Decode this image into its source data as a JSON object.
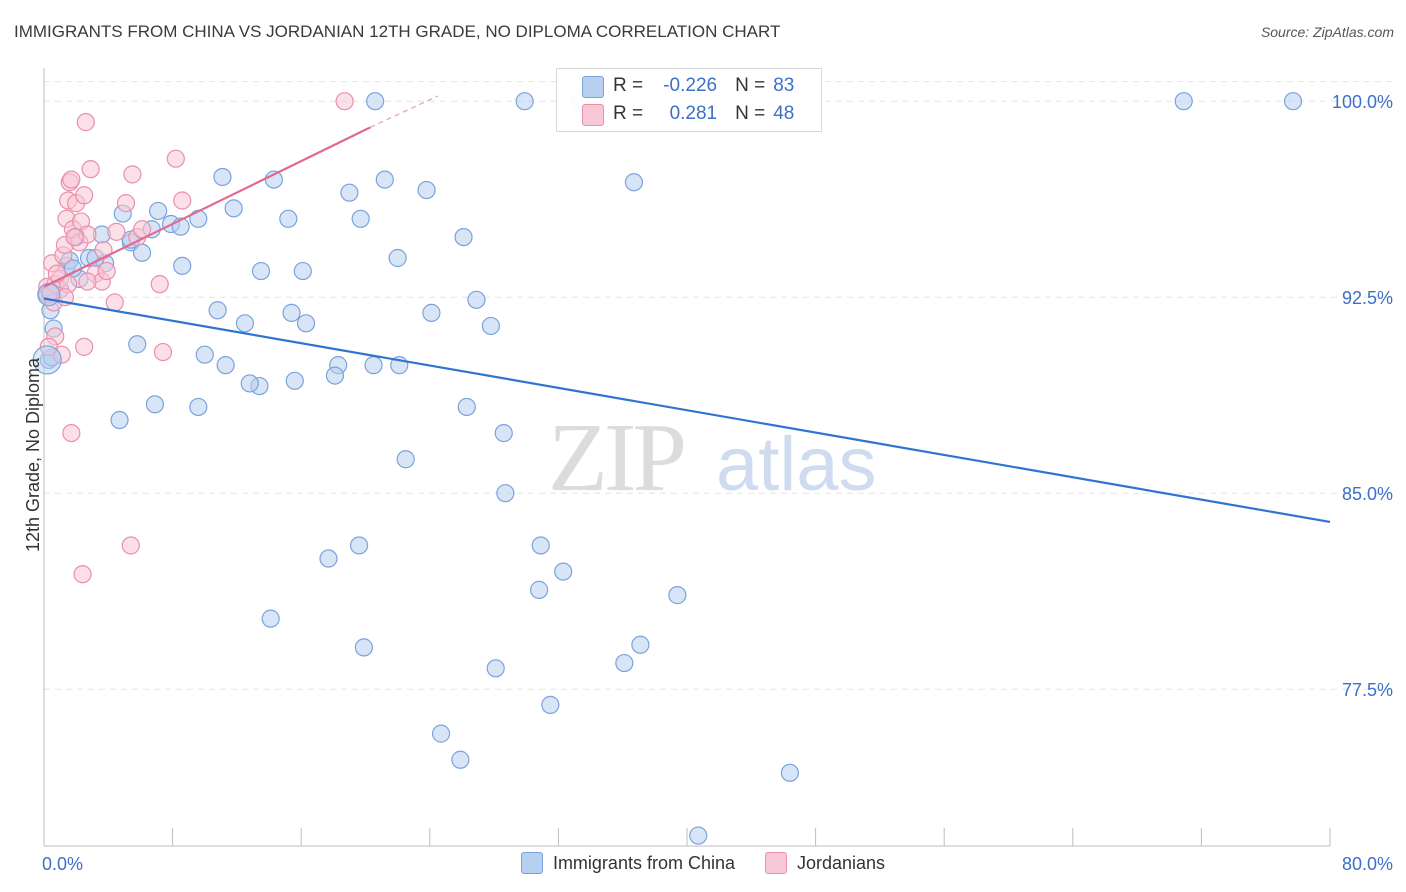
{
  "chart_data": {
    "type": "scatter",
    "title": "IMMIGRANTS FROM CHINA VS JORDANIAN 12TH GRADE, NO DIPLOMA CORRELATION CHART",
    "source": "Source: ZipAtlas.com",
    "xlabel": "",
    "ylabel": "12th Grade, No Diploma",
    "xlim": [
      0,
      80
    ],
    "ylim": [
      71.5,
      101.5
    ],
    "x_tick_labels": [
      "0.0%",
      "80.0%"
    ],
    "y_ticks": [
      77.5,
      85.0,
      92.5,
      100.0
    ],
    "y_tick_labels": [
      "77.5%",
      "85.0%",
      "92.5%",
      "100.0%"
    ],
    "grid": true,
    "watermark": "ZIPatlas",
    "legend_position": "bottom-center",
    "colors": {
      "china_fill": "#b8d0f0",
      "china_edge": "#7aa3dc",
      "china_line": "#2f74d0",
      "jordan_fill": "#f8c7d6",
      "jordan_edge": "#ea8fac",
      "jordan_line": "#e06a93",
      "axis_text": "#3d6fc9",
      "grid": "#e3e3e3"
    },
    "stats": [
      {
        "label_r": "R =",
        "r": "-0.226",
        "label_n": "N =",
        "n": "83"
      },
      {
        "label_r": "R =",
        "r": "0.281",
        "label_n": "N =",
        "n": "48"
      }
    ],
    "series": [
      {
        "name": "Immigrants from China",
        "trend": {
          "x": [
            0,
            80
          ],
          "y": [
            92.45,
            83.9
          ]
        },
        "points": [
          [
            0.2,
            92.6
          ],
          [
            0.4,
            92.0
          ],
          [
            0.3,
            90.1
          ],
          [
            0.6,
            91.3
          ],
          [
            1.4,
            93.7
          ],
          [
            1.6,
            93.9
          ],
          [
            2.0,
            94.8
          ],
          [
            2.2,
            93.2
          ],
          [
            2.8,
            94.0
          ],
          [
            3.6,
            94.9
          ],
          [
            3.8,
            93.8
          ],
          [
            4.9,
            95.7
          ],
          [
            5.4,
            94.6
          ],
          [
            6.1,
            94.2
          ],
          [
            6.7,
            95.1
          ],
          [
            7.1,
            95.8
          ],
          [
            7.9,
            95.3
          ],
          [
            8.6,
            93.7
          ],
          [
            9.6,
            95.5
          ],
          [
            11.1,
            97.1
          ],
          [
            11.8,
            95.9
          ],
          [
            13.5,
            93.5
          ],
          [
            15.2,
            95.5
          ],
          [
            16.1,
            93.5
          ],
          [
            14.3,
            97.0
          ],
          [
            19.0,
            96.5
          ],
          [
            19.7,
            95.5
          ],
          [
            21.2,
            97.0
          ],
          [
            22.0,
            94.0
          ],
          [
            23.8,
            96.6
          ],
          [
            26.1,
            94.8
          ],
          [
            26.9,
            92.4
          ],
          [
            27.8,
            91.4
          ],
          [
            24.1,
            91.9
          ],
          [
            20.5,
            89.9
          ],
          [
            22.1,
            89.9
          ],
          [
            18.3,
            89.9
          ],
          [
            18.1,
            89.5
          ],
          [
            15.6,
            89.3
          ],
          [
            16.3,
            91.5
          ],
          [
            15.4,
            91.9
          ],
          [
            13.4,
            89.1
          ],
          [
            12.8,
            89.2
          ],
          [
            12.5,
            91.5
          ],
          [
            10.8,
            92.0
          ],
          [
            11.3,
            89.9
          ],
          [
            10.0,
            90.3
          ],
          [
            9.6,
            88.3
          ],
          [
            6.9,
            88.4
          ],
          [
            5.8,
            90.7
          ],
          [
            4.7,
            87.8
          ],
          [
            26.3,
            88.3
          ],
          [
            28.6,
            87.3
          ],
          [
            22.5,
            86.3
          ],
          [
            28.7,
            85.0
          ],
          [
            19.6,
            83.0
          ],
          [
            17.7,
            82.5
          ],
          [
            30.9,
            83.0
          ],
          [
            32.3,
            82.0
          ],
          [
            30.8,
            81.3
          ],
          [
            39.4,
            81.1
          ],
          [
            14.1,
            80.2
          ],
          [
            19.9,
            79.1
          ],
          [
            28.1,
            78.3
          ],
          [
            36.1,
            78.5
          ],
          [
            37.1,
            79.2
          ],
          [
            31.5,
            76.9
          ],
          [
            24.7,
            75.8
          ],
          [
            25.9,
            74.8
          ],
          [
            46.4,
            74.3
          ],
          [
            40.7,
            71.9
          ],
          [
            36.7,
            96.9
          ],
          [
            33.4,
            100.0
          ],
          [
            29.9,
            100.0
          ],
          [
            20.6,
            100.0
          ],
          [
            70.9,
            100.0
          ],
          [
            77.7,
            100.0
          ],
          [
            0.5,
            90.2
          ],
          [
            1.8,
            93.6
          ],
          [
            5.4,
            94.7
          ],
          [
            8.5,
            95.2
          ],
          [
            3.2,
            94.0
          ],
          [
            1.0,
            92.8
          ]
        ]
      },
      {
        "name": "Jordanians",
        "trend": {
          "x": [
            0,
            20.3
          ],
          "y": [
            92.9,
            99.0
          ]
        },
        "trend_ext": {
          "x": [
            20.3,
            24.5
          ],
          "y": [
            99.0,
            100.2
          ]
        },
        "points": [
          [
            0.2,
            92.9
          ],
          [
            0.4,
            92.6
          ],
          [
            0.5,
            93.8
          ],
          [
            0.6,
            92.3
          ],
          [
            0.7,
            93.0
          ],
          [
            1.0,
            93.2
          ],
          [
            1.2,
            94.1
          ],
          [
            1.3,
            94.5
          ],
          [
            1.4,
            95.5
          ],
          [
            1.5,
            96.2
          ],
          [
            1.6,
            96.9
          ],
          [
            1.7,
            97.0
          ],
          [
            1.8,
            95.1
          ],
          [
            2.0,
            96.1
          ],
          [
            2.2,
            94.6
          ],
          [
            2.3,
            95.4
          ],
          [
            2.5,
            96.4
          ],
          [
            2.7,
            94.9
          ],
          [
            2.9,
            97.4
          ],
          [
            3.2,
            93.4
          ],
          [
            3.6,
            93.1
          ],
          [
            3.9,
            93.5
          ],
          [
            4.4,
            92.3
          ],
          [
            5.1,
            96.1
          ],
          [
            5.5,
            97.2
          ],
          [
            5.8,
            94.8
          ],
          [
            6.1,
            95.1
          ],
          [
            7.2,
            93.0
          ],
          [
            7.4,
            90.4
          ],
          [
            8.2,
            97.8
          ],
          [
            8.6,
            96.2
          ],
          [
            2.6,
            99.2
          ],
          [
            18.7,
            100.0
          ],
          [
            0.7,
            91.0
          ],
          [
            1.1,
            90.3
          ],
          [
            1.7,
            87.3
          ],
          [
            2.5,
            90.6
          ],
          [
            5.4,
            83.0
          ],
          [
            2.4,
            81.9
          ],
          [
            0.4,
            92.7
          ],
          [
            1.5,
            93.0
          ],
          [
            1.9,
            94.8
          ],
          [
            3.7,
            94.3
          ],
          [
            0.8,
            93.4
          ],
          [
            1.3,
            92.5
          ],
          [
            2.7,
            93.1
          ],
          [
            0.3,
            90.6
          ],
          [
            4.5,
            95.0
          ]
        ]
      }
    ]
  }
}
